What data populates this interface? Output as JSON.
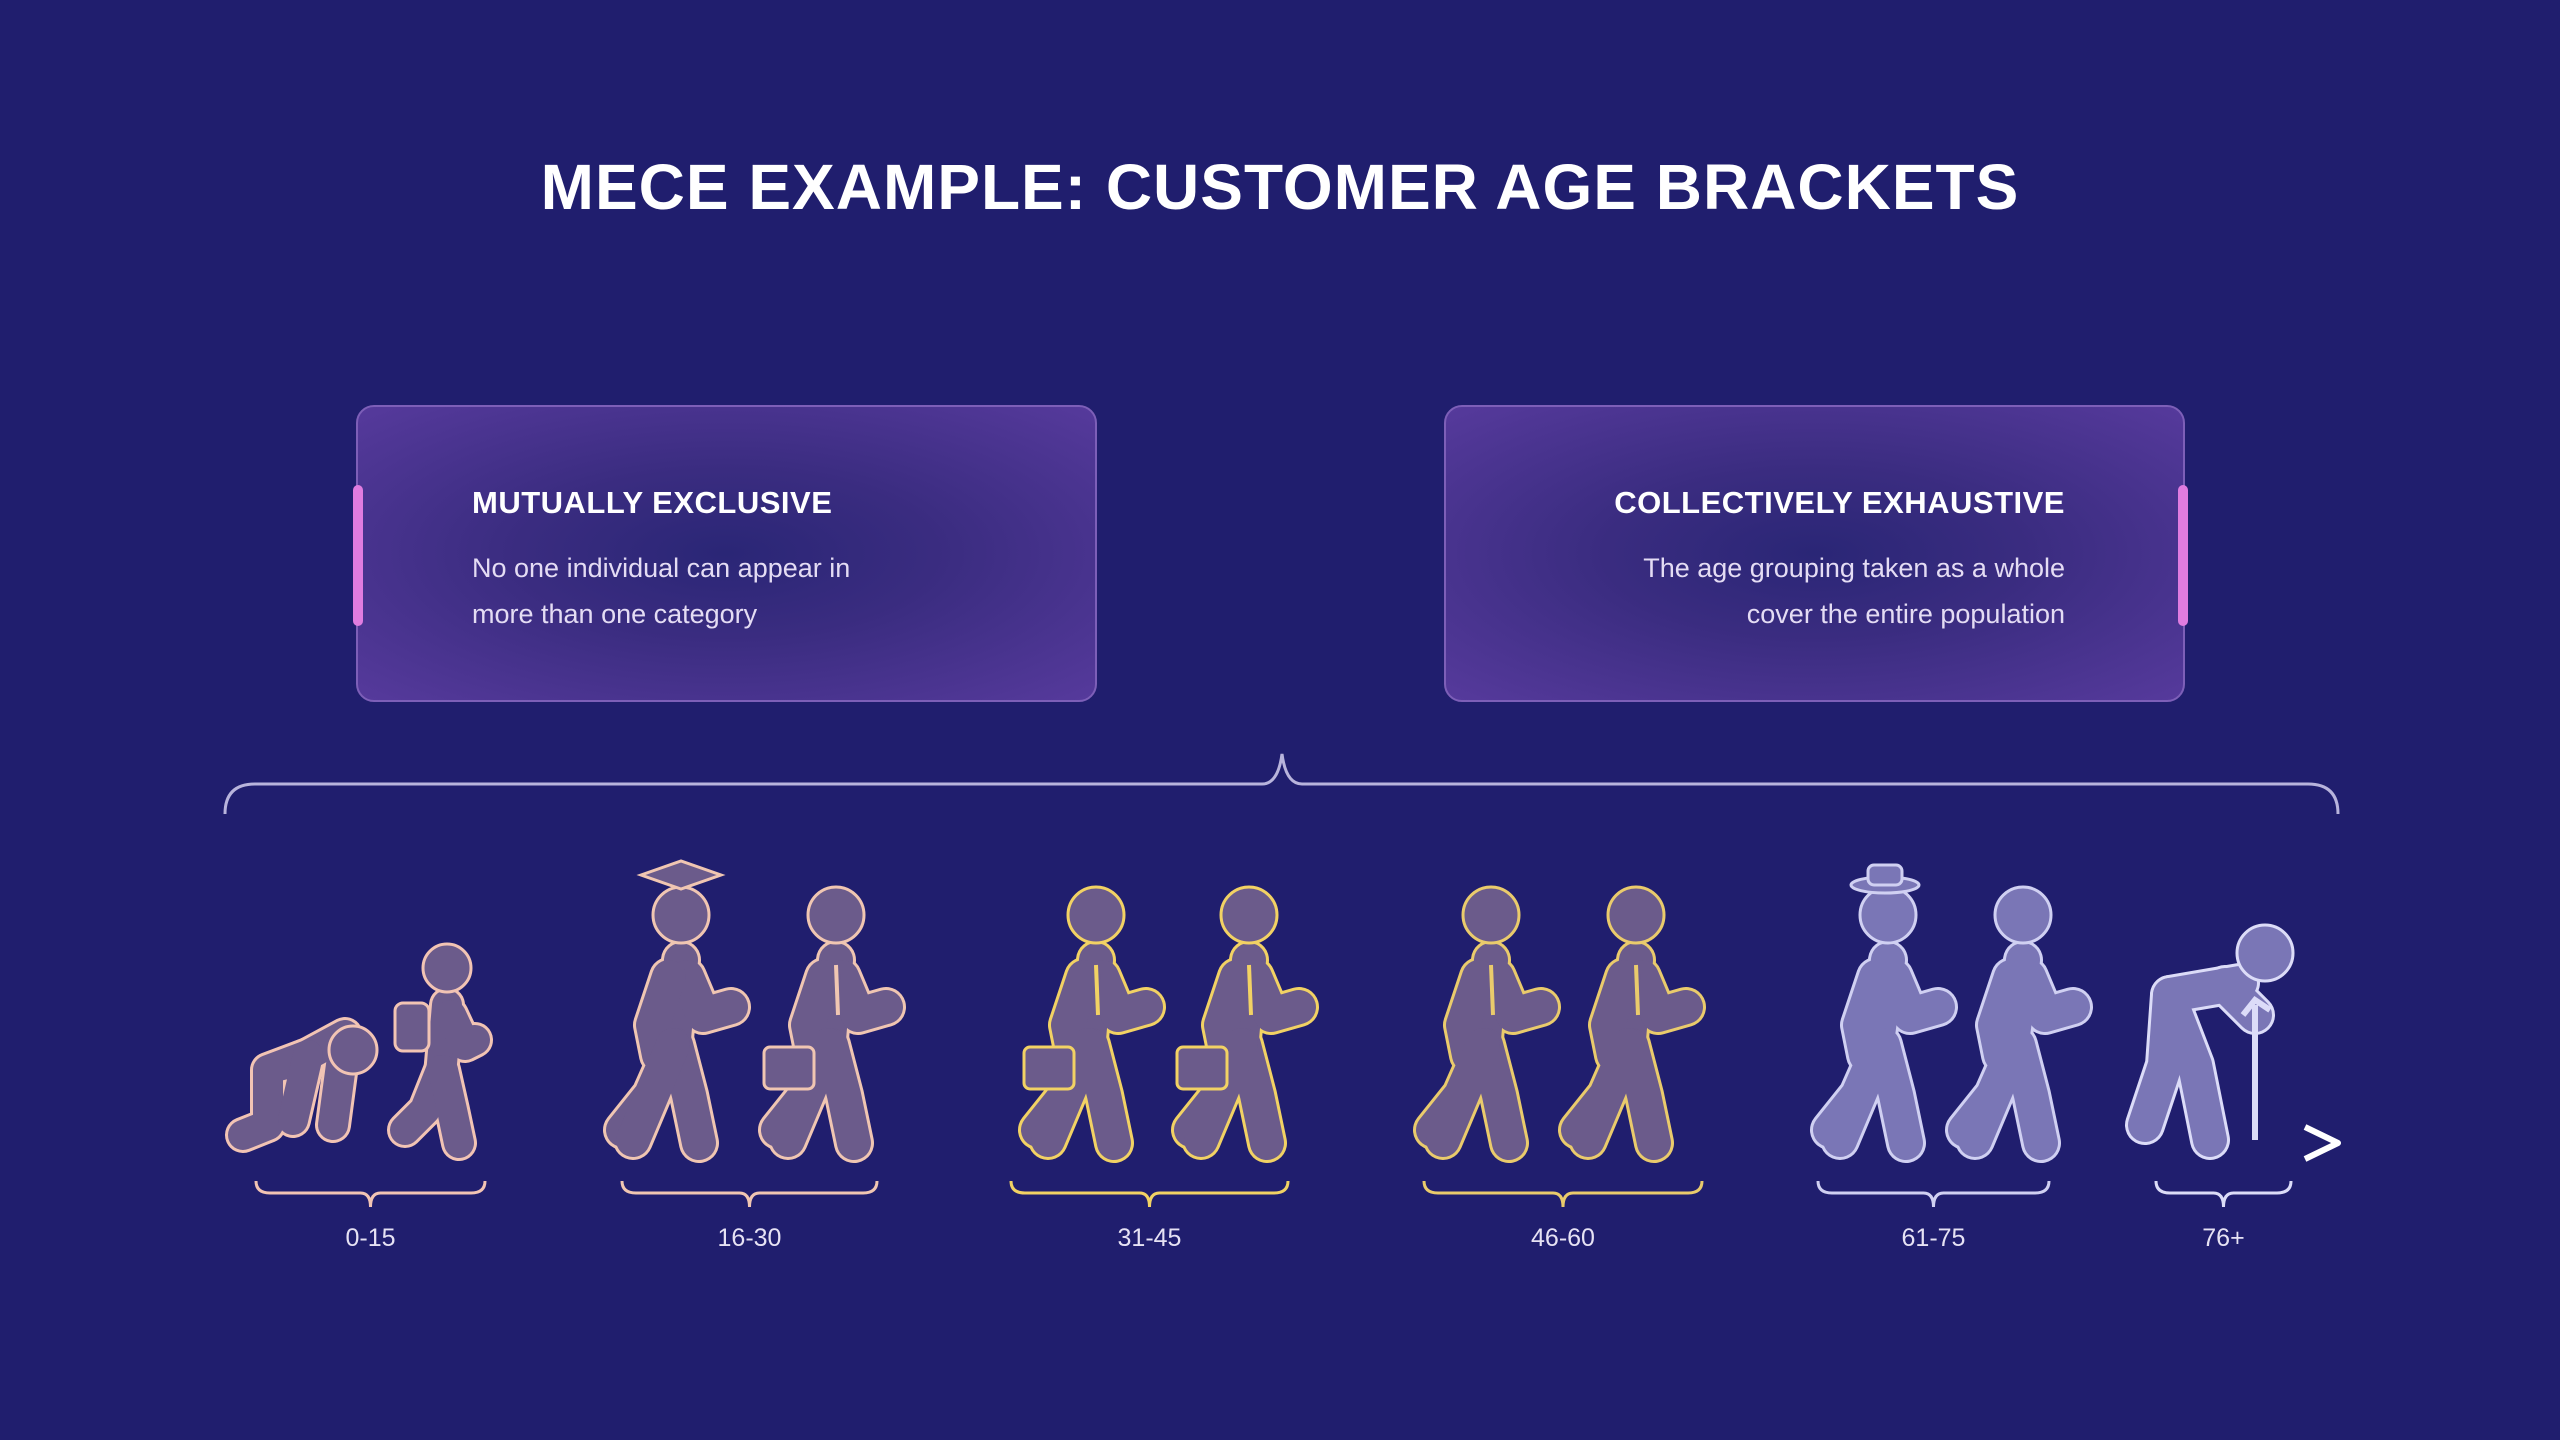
{
  "title": "MECE EXAMPLE: CUSTOMER AGE BRACKETS",
  "cards": [
    {
      "heading": "MUTUALLY EXCLUSIVE",
      "lines": [
        "No one individual can appear in",
        "more than one category"
      ]
    },
    {
      "heading": "COLLECTIVELY EXHAUSTIVE",
      "lines": [
        "The age grouping taken as a whole",
        "cover the entire population"
      ]
    }
  ],
  "brackets": [
    {
      "label": "0-15",
      "color": "#f2c4b4",
      "figures": [
        "baby-crawling-icon",
        "child-backpack-icon"
      ]
    },
    {
      "label": "16-30",
      "color": "#f0c6b2",
      "figures": [
        "graduate-icon",
        "young-professional-icon"
      ]
    },
    {
      "label": "31-45",
      "color": "#f2d264",
      "figures": [
        "businessperson-icon",
        "businessperson-icon"
      ]
    },
    {
      "label": "46-60",
      "color": "#eacb6c",
      "figures": [
        "middle-aged-person-icon",
        "middle-aged-person-icon"
      ]
    },
    {
      "label": "61-75",
      "color": "#d0d0f2",
      "figures": [
        "senior-hat-icon",
        "senior-walking-icon"
      ]
    },
    {
      "label": "76+",
      "color": "#dcdcf8",
      "figures": [
        "elderly-cane-icon"
      ]
    }
  ],
  "colors": {
    "background": "#201e6e",
    "accent": "#e07ce0",
    "figure_fill_warm": "#6b5b8b",
    "figure_fill_cool": "#7a76b6"
  }
}
